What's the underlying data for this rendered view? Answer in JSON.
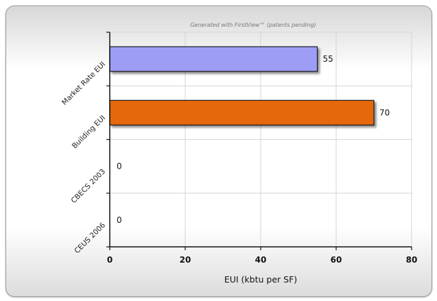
{
  "credit": "Generated with FirstView™ (patents pending)",
  "chart_data": {
    "type": "bar",
    "orientation": "horizontal",
    "categories": [
      "Market Rate EUI",
      "Building EUI",
      "CBECS 2003",
      "CEUS 2006"
    ],
    "values": [
      55,
      70,
      0,
      0
    ],
    "colors": [
      "#9d9df5",
      "#e5680e",
      "#9d9df5",
      "#9d9df5"
    ],
    "xlabel": "EUI (kbtu per SF)",
    "ylabel": "",
    "title": "",
    "xlim": [
      0,
      80
    ],
    "xticks": [
      0,
      20,
      40,
      60,
      80
    ],
    "grid": true,
    "legend": "none"
  }
}
